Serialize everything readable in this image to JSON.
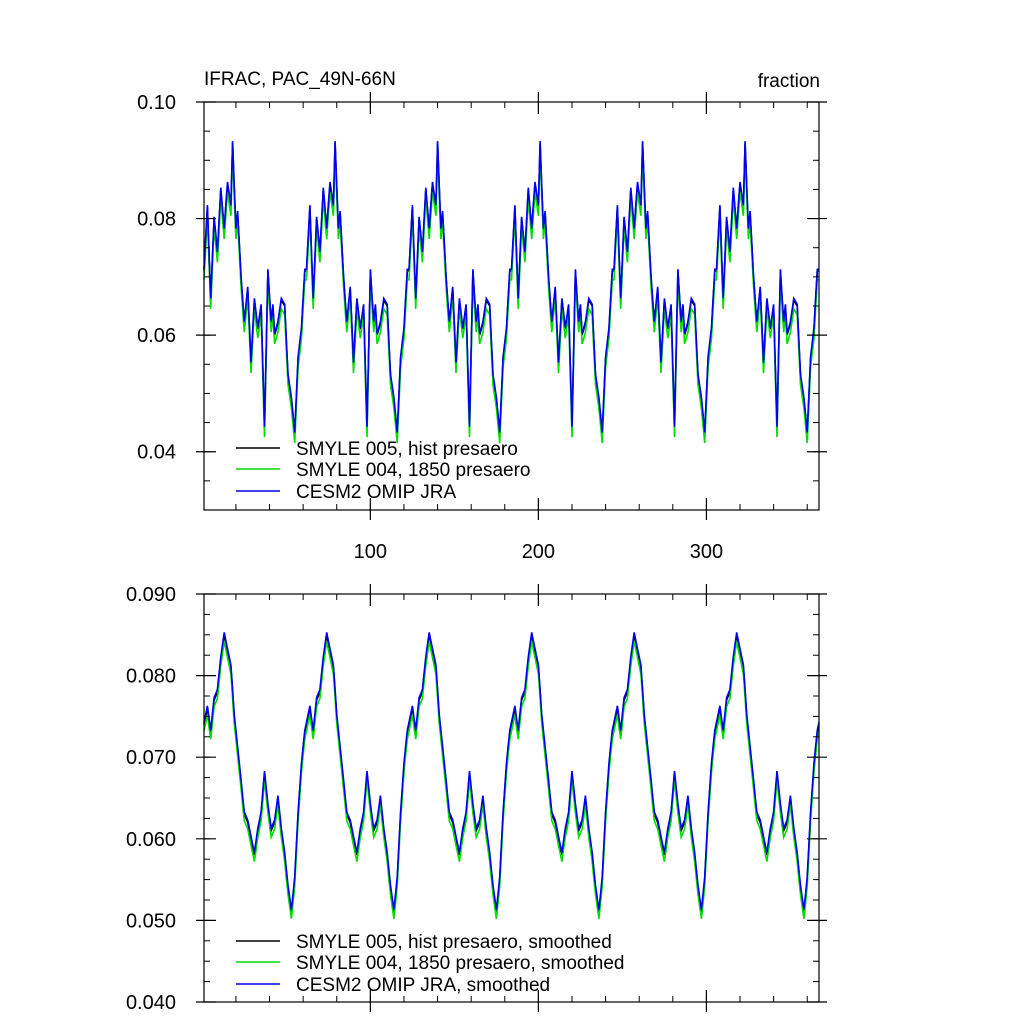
{
  "chart_data": [
    {
      "type": "line",
      "title": "IFRAC, PAC_49N-66N",
      "units_label": "fraction",
      "xlim": [
        1,
        367
      ],
      "ylim": [
        0.03,
        0.1
      ],
      "x_ticks": [
        100,
        200,
        300
      ],
      "x_tick_labels": [
        "100",
        "200",
        "300"
      ],
      "y_ticks": [
        0.04,
        0.06,
        0.08,
        0.1
      ],
      "y_tick_labels": [
        "0.04",
        "0.06",
        "0.08",
        "0.10"
      ],
      "legend": [
        "SMYLE 005, hist presaero",
        "SMYLE 004, 1850 presaero",
        "CESM2 OMIP JRA"
      ],
      "series": [
        {
          "name": "SMYLE 005, hist presaero",
          "color": "#000000"
        },
        {
          "name": "SMYLE 004, 1850 presaero",
          "color": "#00dd00"
        },
        {
          "name": "CESM2 OMIP JRA",
          "color": "#0000ee"
        }
      ],
      "period": 61,
      "cycle_x": [
        1,
        3,
        5,
        7,
        9,
        11,
        13,
        15,
        17,
        18,
        20,
        21,
        23,
        25,
        27,
        29,
        31,
        33,
        35,
        37,
        39,
        41,
        42,
        43,
        45,
        47,
        49,
        51,
        53,
        55,
        57,
        59,
        60,
        61
      ],
      "cycle_y": [
        0.071,
        0.082,
        0.066,
        0.08,
        0.074,
        0.085,
        0.078,
        0.086,
        0.082,
        0.093,
        0.078,
        0.081,
        0.07,
        0.062,
        0.068,
        0.055,
        0.066,
        0.061,
        0.065,
        0.044,
        0.071,
        0.062,
        0.065,
        0.06,
        0.062,
        0.066,
        0.065,
        0.053,
        0.049,
        0.043,
        0.056,
        0.061,
        0.066,
        0.071
      ],
      "green_offset": -0.0015
    },
    {
      "type": "line",
      "title": "",
      "xlim": [
        1,
        367
      ],
      "ylim": [
        0.04,
        0.09
      ],
      "x_ticks": [
        100,
        200,
        300
      ],
      "x_tick_labels": [],
      "y_ticks": [
        0.04,
        0.05,
        0.06,
        0.07,
        0.08,
        0.09
      ],
      "y_tick_labels": [
        "0.040",
        "0.050",
        "0.060",
        "0.070",
        "0.080",
        "0.090"
      ],
      "legend": [
        "SMYLE 005, hist presaero, smoothed",
        "SMYLE 004, 1850 presaero, smoothed",
        "CESM2 OMIP JRA, smoothed"
      ],
      "series": [
        {
          "name": "SMYLE 005, hist presaero, smoothed",
          "color": "#000000"
        },
        {
          "name": "SMYLE 004, 1850 presaero, smoothed",
          "color": "#00dd00"
        },
        {
          "name": "CESM2 OMIP JRA, smoothed",
          "color": "#0000ee"
        }
      ],
      "period": 61,
      "cycle_x": [
        1,
        3,
        5,
        7,
        9,
        11,
        13,
        15,
        17,
        18,
        19,
        21,
        23,
        25,
        27,
        29,
        31,
        33,
        35,
        37,
        39,
        41,
        43,
        45,
        47,
        49,
        51,
        53,
        55,
        57,
        59,
        61
      ],
      "cycle_y": [
        0.074,
        0.076,
        0.073,
        0.077,
        0.078,
        0.082,
        0.085,
        0.083,
        0.081,
        0.078,
        0.075,
        0.071,
        0.067,
        0.063,
        0.062,
        0.06,
        0.058,
        0.061,
        0.063,
        0.068,
        0.064,
        0.061,
        0.062,
        0.065,
        0.061,
        0.058,
        0.054,
        0.051,
        0.055,
        0.063,
        0.069,
        0.073
      ],
      "green_offset": -0.0008
    }
  ]
}
